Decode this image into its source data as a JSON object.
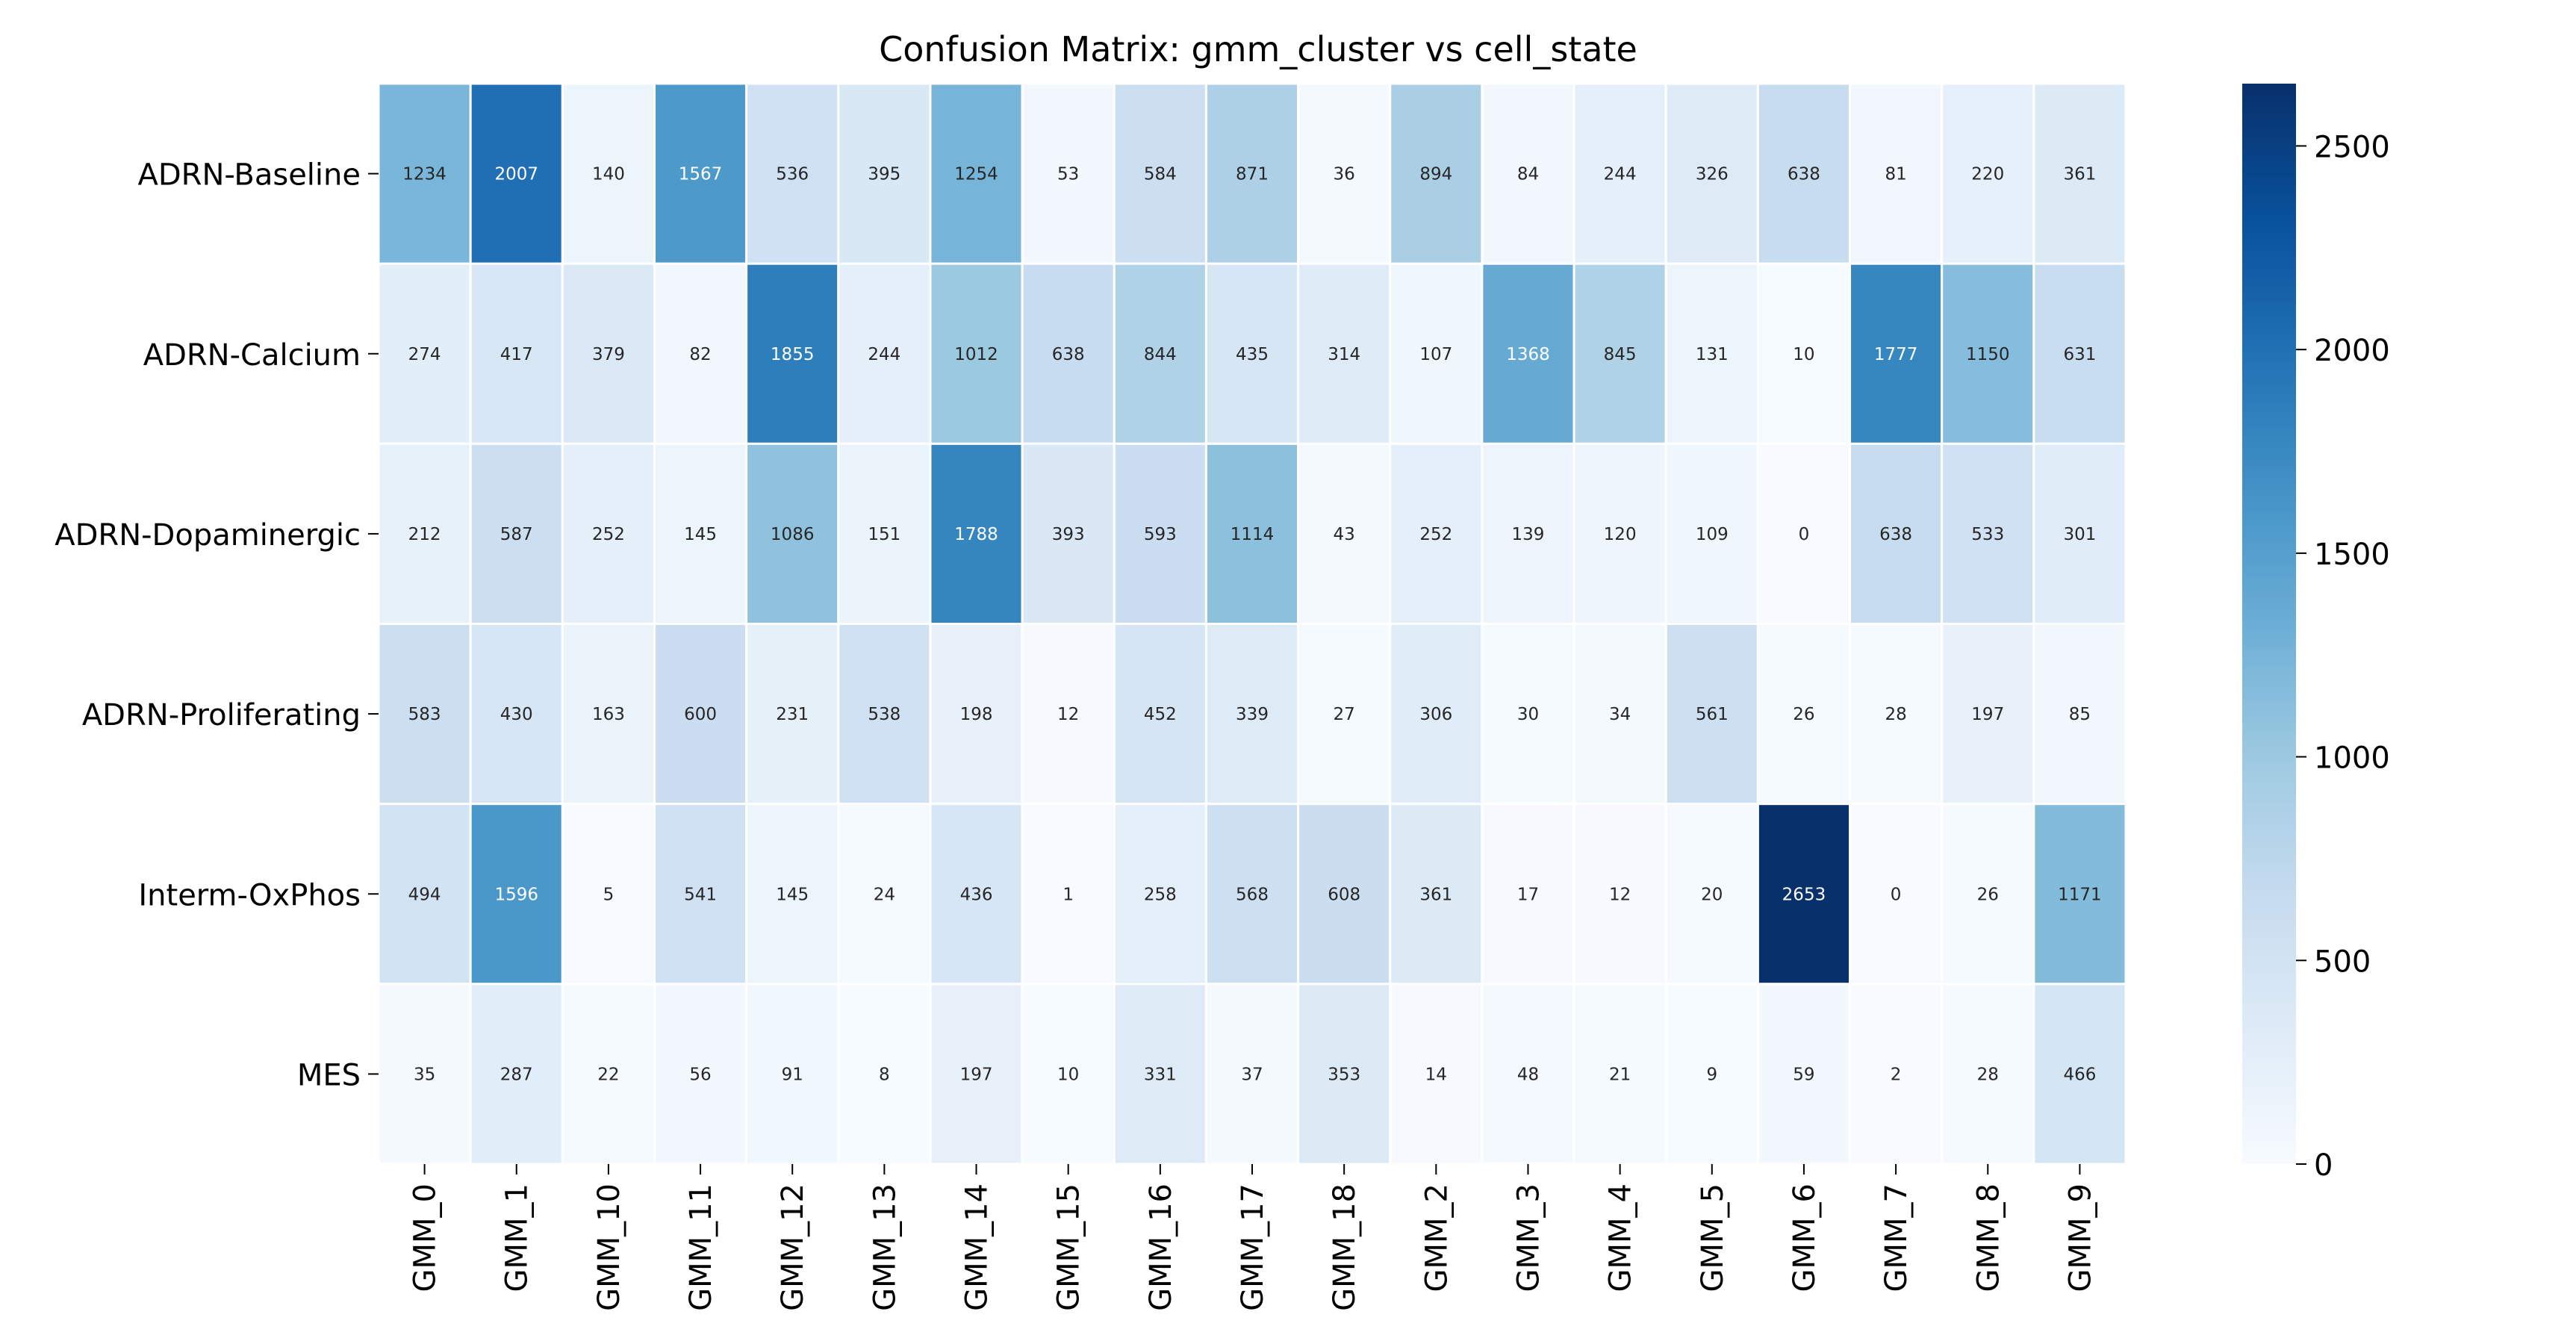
{
  "chart_data": {
    "type": "heatmap",
    "title": "Confusion Matrix: gmm_cluster vs cell_state",
    "xlabel": "",
    "ylabel": "",
    "x_categories": [
      "GMM_0",
      "GMM_1",
      "GMM_10",
      "GMM_11",
      "GMM_12",
      "GMM_13",
      "GMM_14",
      "GMM_15",
      "GMM_16",
      "GMM_17",
      "GMM_18",
      "GMM_2",
      "GMM_3",
      "GMM_4",
      "GMM_5",
      "GMM_6",
      "GMM_7",
      "GMM_8",
      "GMM_9"
    ],
    "y_categories": [
      "ADRN-Baseline",
      "ADRN-Calcium",
      "ADRN-Dopaminergic",
      "ADRN-Proliferating",
      "Interm-OxPhos",
      "MES"
    ],
    "values": [
      [
        1234,
        2007,
        140,
        1567,
        536,
        395,
        1254,
        53,
        584,
        871,
        36,
        894,
        84,
        244,
        326,
        638,
        81,
        220,
        361
      ],
      [
        274,
        417,
        379,
        82,
        1855,
        244,
        1012,
        638,
        844,
        435,
        314,
        107,
        1368,
        845,
        131,
        10,
        1777,
        1150,
        631
      ],
      [
        212,
        587,
        252,
        145,
        1086,
        151,
        1788,
        393,
        593,
        1114,
        43,
        252,
        139,
        120,
        109,
        0,
        638,
        533,
        301
      ],
      [
        583,
        430,
        163,
        600,
        231,
        538,
        198,
        12,
        452,
        339,
        27,
        306,
        30,
        34,
        561,
        26,
        28,
        197,
        85
      ],
      [
        494,
        1596,
        5,
        541,
        145,
        24,
        436,
        1,
        258,
        568,
        608,
        361,
        17,
        12,
        20,
        2653,
        0,
        26,
        1171
      ],
      [
        35,
        287,
        22,
        56,
        91,
        8,
        197,
        10,
        331,
        37,
        353,
        14,
        48,
        21,
        9,
        59,
        2,
        28,
        466
      ]
    ],
    "value_range": [
      0,
      2653
    ],
    "colormap": "Blues",
    "colorbar": {
      "ticks": [
        0,
        500,
        1000,
        1500,
        2000,
        2500
      ],
      "tick_labels": [
        "0",
        "500",
        "1000",
        "1500",
        "2000",
        "2500"
      ]
    },
    "annotations": true,
    "grid": false
  }
}
